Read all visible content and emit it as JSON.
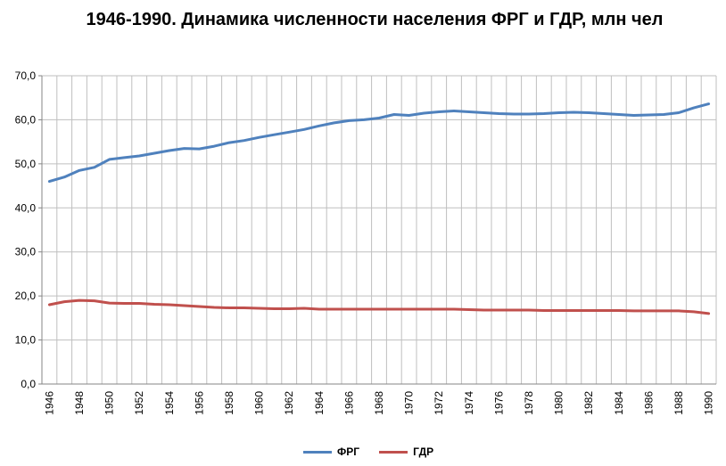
{
  "chart_data": {
    "type": "line",
    "title": "1946-1990. Динамика численности населения ФРГ и ГДР, млн чел",
    "xlabel": "",
    "ylabel": "",
    "ylim": [
      0,
      70
    ],
    "yticks": [
      "0,0",
      "10,0",
      "20,0",
      "30,0",
      "40,0",
      "50,0",
      "60,0",
      "70,0"
    ],
    "xticks": [
      "1946",
      "1948",
      "1950",
      "1952",
      "1954",
      "1956",
      "1958",
      "1960",
      "1962",
      "1964",
      "1966",
      "1968",
      "1970",
      "1972",
      "1974",
      "1976",
      "1978",
      "1980",
      "1982",
      "1984",
      "1986",
      "1988",
      "1990"
    ],
    "grid": true,
    "legend_position": "bottom",
    "x": [
      1946,
      1947,
      1948,
      1949,
      1950,
      1951,
      1952,
      1953,
      1954,
      1955,
      1956,
      1957,
      1958,
      1959,
      1960,
      1961,
      1962,
      1963,
      1964,
      1965,
      1966,
      1967,
      1968,
      1969,
      1970,
      1971,
      1972,
      1973,
      1974,
      1975,
      1976,
      1977,
      1978,
      1979,
      1980,
      1981,
      1982,
      1983,
      1984,
      1985,
      1986,
      1987,
      1988,
      1989,
      1990
    ],
    "series": [
      {
        "name": "ФРГ",
        "color": "#4f81bd",
        "values": [
          46.0,
          47.0,
          48.5,
          49.2,
          51.0,
          51.4,
          51.8,
          52.4,
          53.0,
          53.5,
          53.4,
          54.0,
          54.8,
          55.3,
          56.0,
          56.6,
          57.2,
          57.8,
          58.6,
          59.3,
          59.8,
          60.0,
          60.4,
          61.2,
          61.0,
          61.5,
          61.8,
          62.0,
          61.8,
          61.6,
          61.4,
          61.3,
          61.3,
          61.4,
          61.6,
          61.7,
          61.6,
          61.4,
          61.2,
          61.0,
          61.1,
          61.2,
          61.6,
          62.7,
          63.6
        ]
      },
      {
        "name": "ГДР",
        "color": "#c0504d",
        "values": [
          18.0,
          18.7,
          19.0,
          18.9,
          18.4,
          18.3,
          18.3,
          18.1,
          18.0,
          17.8,
          17.6,
          17.4,
          17.3,
          17.3,
          17.2,
          17.1,
          17.1,
          17.2,
          17.0,
          17.0,
          17.0,
          17.0,
          17.0,
          17.0,
          17.0,
          17.0,
          17.0,
          17.0,
          16.9,
          16.8,
          16.8,
          16.8,
          16.8,
          16.7,
          16.7,
          16.7,
          16.7,
          16.7,
          16.7,
          16.6,
          16.6,
          16.6,
          16.6,
          16.4,
          16.0
        ]
      }
    ]
  }
}
